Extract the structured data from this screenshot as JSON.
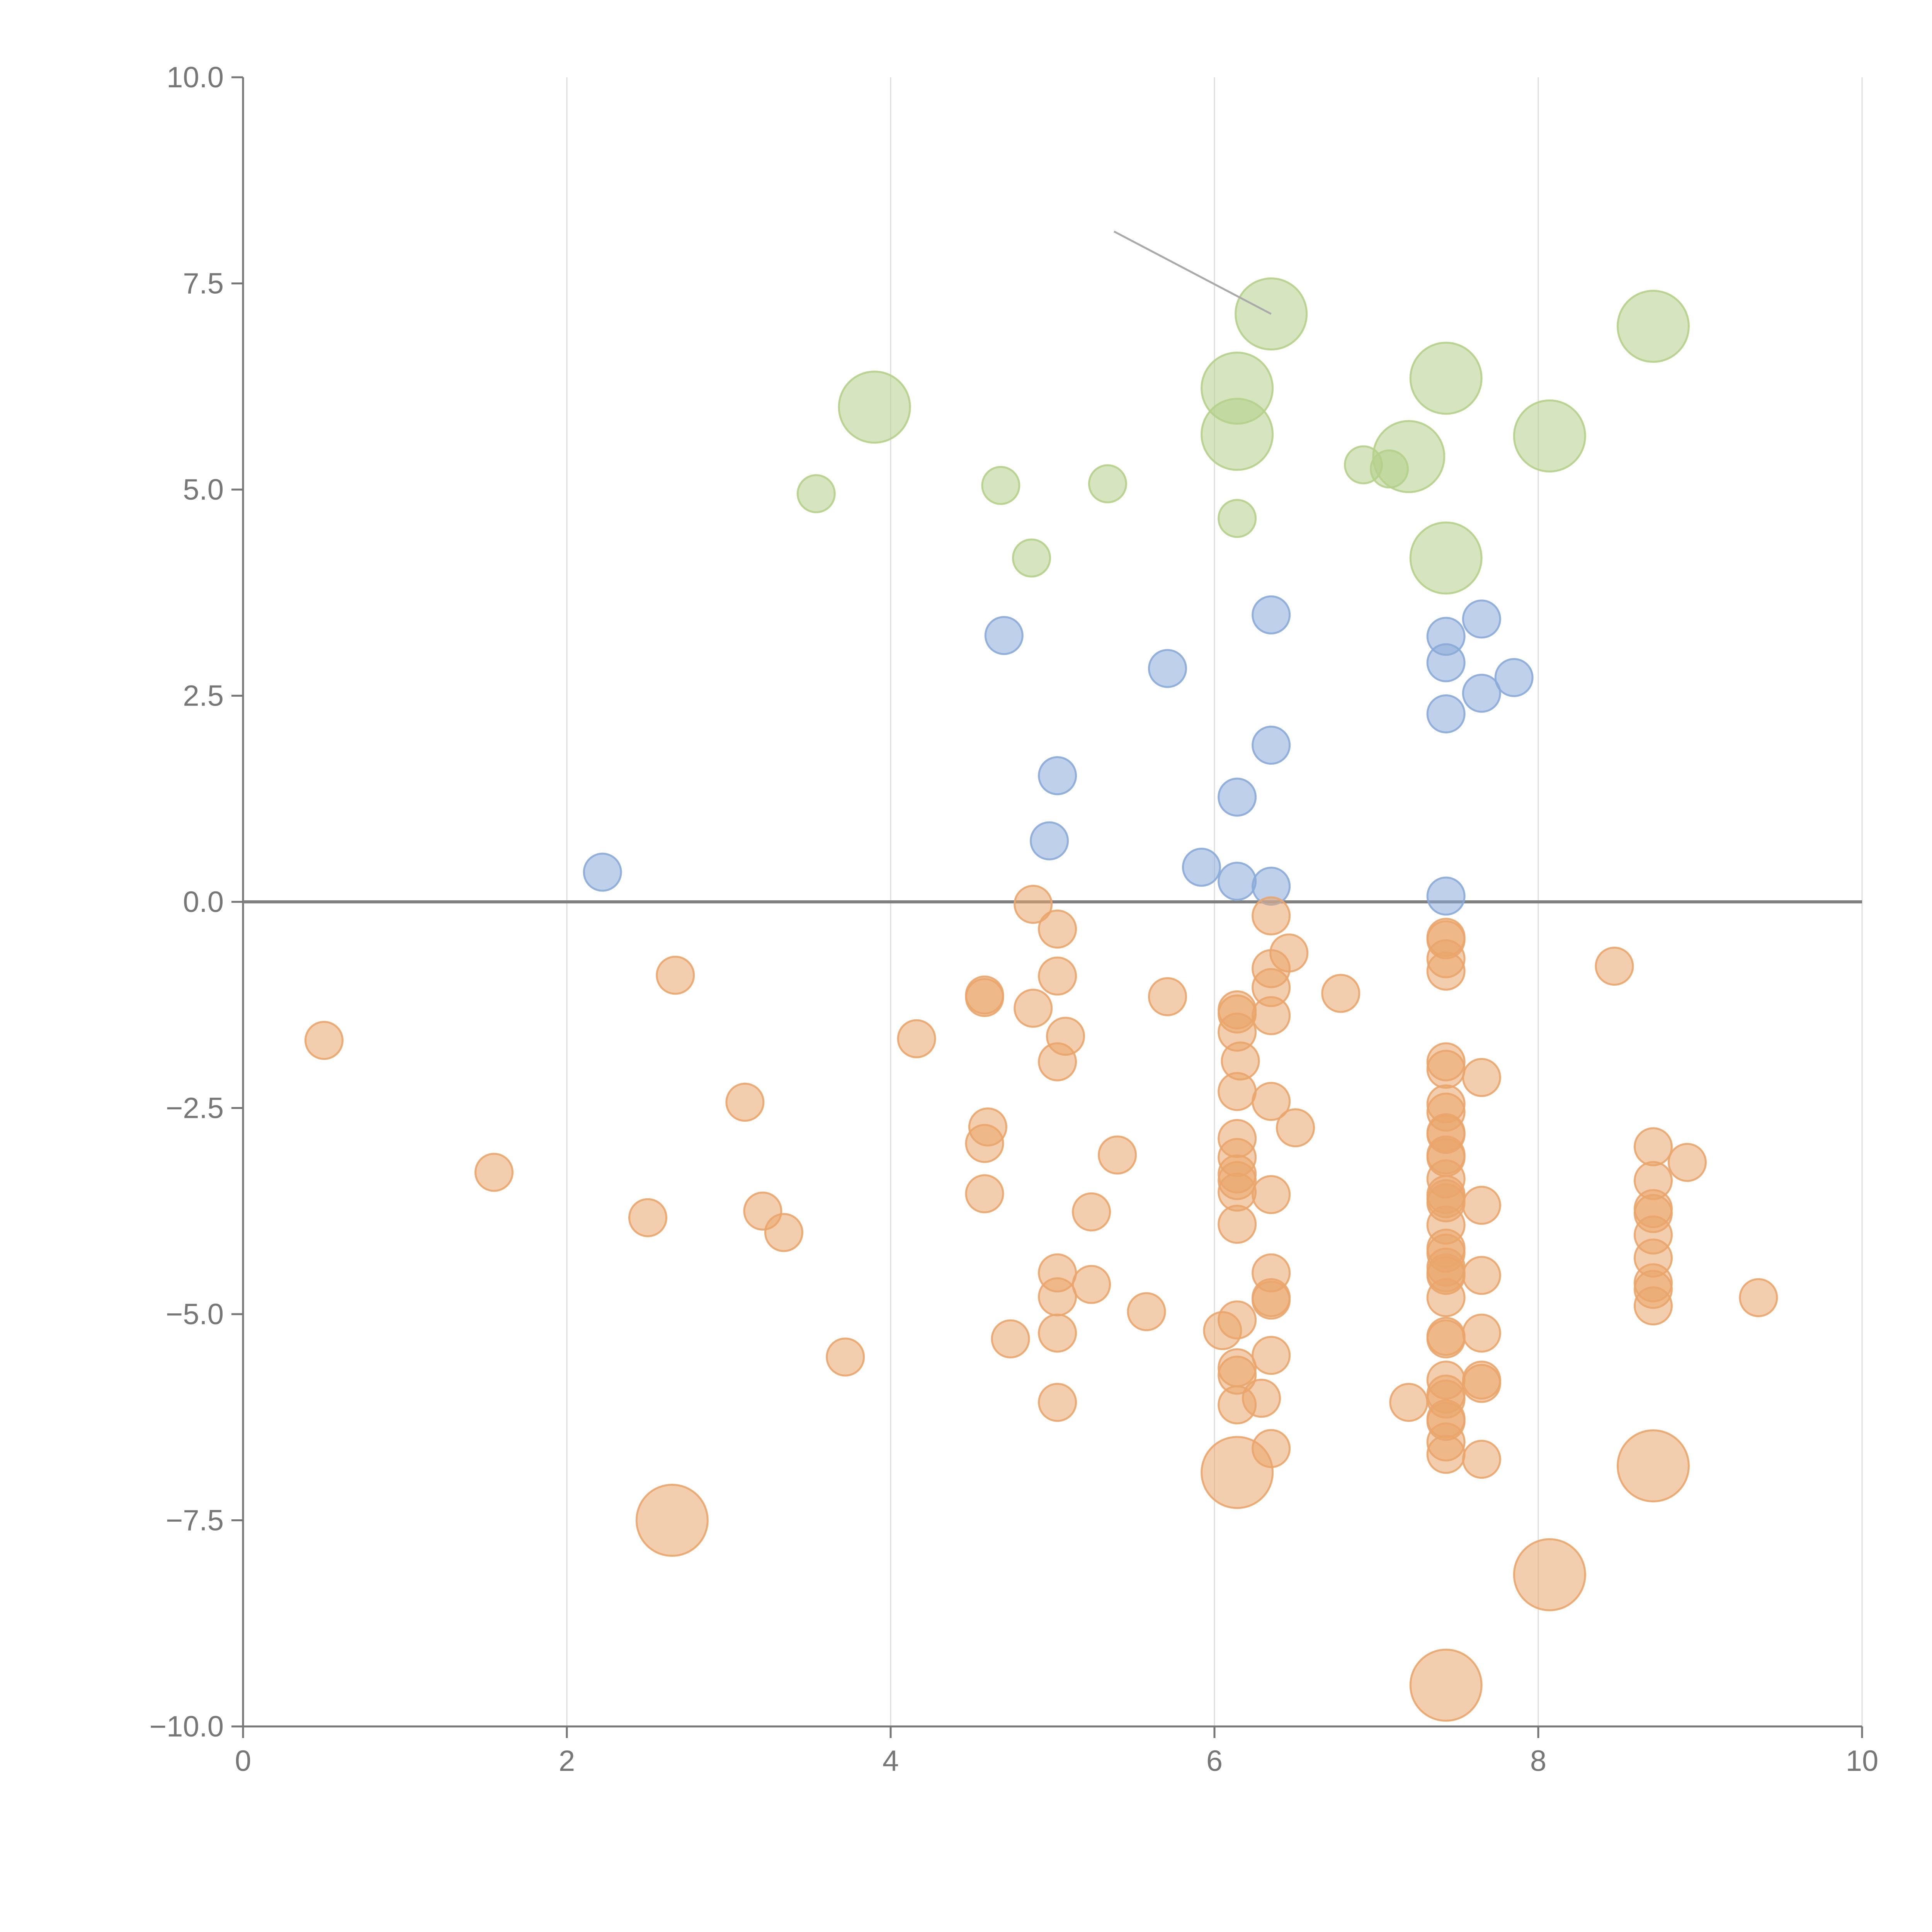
{
  "chart_data": {
    "type": "scatter",
    "title": "",
    "xlabel": "",
    "ylabel": "",
    "xlim": [
      0,
      10
    ],
    "ylim": [
      -10,
      10
    ],
    "x_ticks": [
      0,
      2,
      4,
      6,
      8,
      10
    ],
    "x_tick_labels": [
      "0",
      "2",
      "4",
      "6",
      "8",
      "10"
    ],
    "y_ticks": [
      10,
      7.5,
      5,
      2.5,
      0,
      -2.5,
      -5,
      -7.5,
      -10
    ],
    "y_tick_labels": [
      "10.0",
      "7.5",
      "5.0",
      "2.5",
      "0.0",
      "−2.5",
      "−5.0",
      "−7.5",
      "−10.0"
    ],
    "vertical_grid": true,
    "reference_line_y": 0,
    "colors": {
      "green": "#b5d08a",
      "blue": "#8aaad8",
      "orange": "#eaa56c",
      "axis": "#777777",
      "grid": "#dddddd",
      "zero_line": "#808080",
      "annotation": "#aaaaaa"
    },
    "size_legend": {
      "small": 1,
      "large": 2
    },
    "series": [
      {
        "name": "green",
        "color": "green",
        "points": [
          [
            3.9,
            6.0,
            2
          ],
          [
            3.54,
            4.95,
            1
          ],
          [
            4.68,
            5.05,
            1
          ],
          [
            4.87,
            4.17,
            1
          ],
          [
            5.34,
            5.07,
            1
          ],
          [
            6.14,
            6.23,
            2
          ],
          [
            6.14,
            5.67,
            2
          ],
          [
            6.14,
            4.65,
            1
          ],
          [
            6.35,
            7.13,
            2
          ],
          [
            6.92,
            5.3,
            1
          ],
          [
            7.08,
            5.25,
            1
          ],
          [
            7.2,
            5.4,
            2
          ],
          [
            7.43,
            6.35,
            2
          ],
          [
            7.43,
            4.17,
            2
          ],
          [
            8.07,
            5.65,
            2
          ],
          [
            8.71,
            6.98,
            2
          ]
        ]
      },
      {
        "name": "blue",
        "color": "blue",
        "points": [
          [
            2.22,
            0.36,
            1
          ],
          [
            4.7,
            3.23,
            1
          ],
          [
            5.03,
            1.53,
            1
          ],
          [
            4.98,
            0.74,
            1
          ],
          [
            5.71,
            2.83,
            1
          ],
          [
            5.92,
            0.42,
            1
          ],
          [
            6.14,
            1.27,
            1
          ],
          [
            6.14,
            0.25,
            1
          ],
          [
            6.35,
            3.48,
            1
          ],
          [
            6.35,
            1.9,
            1
          ],
          [
            6.35,
            0.19,
            1
          ],
          [
            7.43,
            3.22,
            1
          ],
          [
            7.43,
            2.9,
            1
          ],
          [
            7.43,
            2.28,
            1
          ],
          [
            7.43,
            0.07,
            1
          ],
          [
            7.65,
            3.43,
            1
          ],
          [
            7.65,
            2.53,
            1
          ],
          [
            7.85,
            2.72,
            1
          ]
        ]
      },
      {
        "name": "orange",
        "color": "orange",
        "points": [
          [
            0.5,
            -1.68,
            1
          ],
          [
            1.55,
            -3.28,
            1
          ],
          [
            2.5,
            -3.83,
            1
          ],
          [
            2.67,
            -0.89,
            1
          ],
          [
            3.1,
            -2.43,
            1
          ],
          [
            3.21,
            -3.75,
            1
          ],
          [
            3.34,
            -4.01,
            1
          ],
          [
            3.72,
            -5.52,
            1
          ],
          [
            4.16,
            -1.66,
            1
          ],
          [
            4.58,
            -1.13,
            1
          ],
          [
            4.58,
            -1.16,
            1
          ],
          [
            4.6,
            -2.73,
            1
          ],
          [
            4.58,
            -2.93,
            1
          ],
          [
            4.58,
            -3.54,
            1
          ],
          [
            4.74,
            -5.3,
            1
          ],
          [
            4.88,
            -0.03,
            1
          ],
          [
            4.88,
            -1.29,
            1
          ],
          [
            5.03,
            -0.33,
            1
          ],
          [
            5.03,
            -0.9,
            1
          ],
          [
            5.08,
            -1.63,
            1
          ],
          [
            5.03,
            -1.94,
            1
          ],
          [
            5.03,
            -4.5,
            1
          ],
          [
            5.03,
            -4.79,
            1
          ],
          [
            5.03,
            -5.23,
            1
          ],
          [
            5.03,
            -6.07,
            1
          ],
          [
            5.24,
            -3.76,
            1
          ],
          [
            5.24,
            -4.64,
            1
          ],
          [
            5.4,
            -3.07,
            1
          ],
          [
            5.58,
            -4.97,
            1
          ],
          [
            5.71,
            -1.15,
            1
          ],
          [
            6.05,
            -5.2,
            1
          ],
          [
            6.14,
            -1.31,
            1
          ],
          [
            6.14,
            -1.36,
            1
          ],
          [
            6.14,
            -1.58,
            1
          ],
          [
            6.16,
            -1.93,
            1
          ],
          [
            6.14,
            -2.3,
            1
          ],
          [
            6.14,
            -2.87,
            1
          ],
          [
            6.14,
            -3.1,
            1
          ],
          [
            6.14,
            -3.3,
            1
          ],
          [
            6.14,
            -3.38,
            1
          ],
          [
            6.14,
            -3.52,
            1
          ],
          [
            6.14,
            -3.91,
            1
          ],
          [
            6.14,
            -5.07,
            1
          ],
          [
            6.14,
            -5.65,
            1
          ],
          [
            6.14,
            -5.74,
            1
          ],
          [
            6.14,
            -6.1,
            1
          ],
          [
            6.14,
            -6.92,
            2
          ],
          [
            6.29,
            -6.02,
            1
          ],
          [
            6.35,
            -0.17,
            1
          ],
          [
            6.35,
            -0.81,
            1
          ],
          [
            6.35,
            -1.04,
            1
          ],
          [
            6.35,
            -1.38,
            1
          ],
          [
            6.35,
            -2.42,
            1
          ],
          [
            6.35,
            -3.55,
            1
          ],
          [
            6.35,
            -4.5,
            1
          ],
          [
            6.35,
            -4.8,
            1
          ],
          [
            6.35,
            -4.83,
            1
          ],
          [
            6.35,
            -5.5,
            1
          ],
          [
            6.35,
            -6.63,
            1
          ],
          [
            6.46,
            -0.62,
            1
          ],
          [
            6.5,
            -2.74,
            1
          ],
          [
            6.78,
            -1.11,
            1
          ],
          [
            7.2,
            -6.07,
            1
          ],
          [
            7.43,
            -0.43,
            1
          ],
          [
            7.43,
            -0.46,
            1
          ],
          [
            7.43,
            -0.69,
            1
          ],
          [
            7.43,
            -0.84,
            1
          ],
          [
            7.43,
            -1.94,
            1
          ],
          [
            7.43,
            -2.03,
            1
          ],
          [
            7.43,
            -2.45,
            1
          ],
          [
            7.43,
            -2.55,
            1
          ],
          [
            7.43,
            -2.8,
            1
          ],
          [
            7.43,
            -2.82,
            1
          ],
          [
            7.43,
            -3.07,
            1
          ],
          [
            7.43,
            -3.1,
            1
          ],
          [
            7.43,
            -3.36,
            1
          ],
          [
            7.43,
            -3.55,
            1
          ],
          [
            7.43,
            -3.6,
            1
          ],
          [
            7.43,
            -3.65,
            1
          ],
          [
            7.43,
            -3.92,
            1
          ],
          [
            7.43,
            -4.2,
            1
          ],
          [
            7.43,
            -4.26,
            1
          ],
          [
            7.43,
            -4.43,
            1
          ],
          [
            7.43,
            -4.5,
            1
          ],
          [
            7.43,
            -4.53,
            1
          ],
          [
            7.43,
            -4.8,
            1
          ],
          [
            7.43,
            -5.27,
            1
          ],
          [
            7.43,
            -5.3,
            1
          ],
          [
            7.43,
            -5.8,
            1
          ],
          [
            7.43,
            -5.97,
            1
          ],
          [
            7.43,
            -6.03,
            1
          ],
          [
            7.43,
            -6.27,
            1
          ],
          [
            7.43,
            -6.3,
            1
          ],
          [
            7.43,
            -6.55,
            1
          ],
          [
            7.43,
            -6.7,
            1
          ],
          [
            7.43,
            -9.5,
            2
          ],
          [
            7.65,
            -2.13,
            1
          ],
          [
            7.65,
            -3.68,
            1
          ],
          [
            7.65,
            -4.53,
            1
          ],
          [
            7.65,
            -5.23,
            1
          ],
          [
            7.65,
            -5.8,
            1
          ],
          [
            7.65,
            -5.84,
            1
          ],
          [
            7.65,
            -6.76,
            1
          ],
          [
            8.07,
            -8.16,
            2
          ],
          [
            8.47,
            -0.78,
            1
          ],
          [
            8.71,
            -2.97,
            1
          ],
          [
            8.71,
            -3.38,
            1
          ],
          [
            8.71,
            -3.72,
            1
          ],
          [
            8.71,
            -3.78,
            1
          ],
          [
            8.71,
            -4.04,
            1
          ],
          [
            8.71,
            -4.32,
            1
          ],
          [
            8.71,
            -4.62,
            1
          ],
          [
            8.71,
            -4.7,
            1
          ],
          [
            8.71,
            -4.9,
            1
          ],
          [
            8.71,
            -6.84,
            2
          ],
          [
            8.92,
            -3.16,
            1
          ],
          [
            9.36,
            -4.8,
            1
          ],
          [
            2.65,
            -7.5,
            2
          ]
        ]
      }
    ],
    "annotations": [
      {
        "x1": 5.38,
        "y1": 8.13,
        "x2": 6.35,
        "y2": 7.13
      }
    ]
  }
}
